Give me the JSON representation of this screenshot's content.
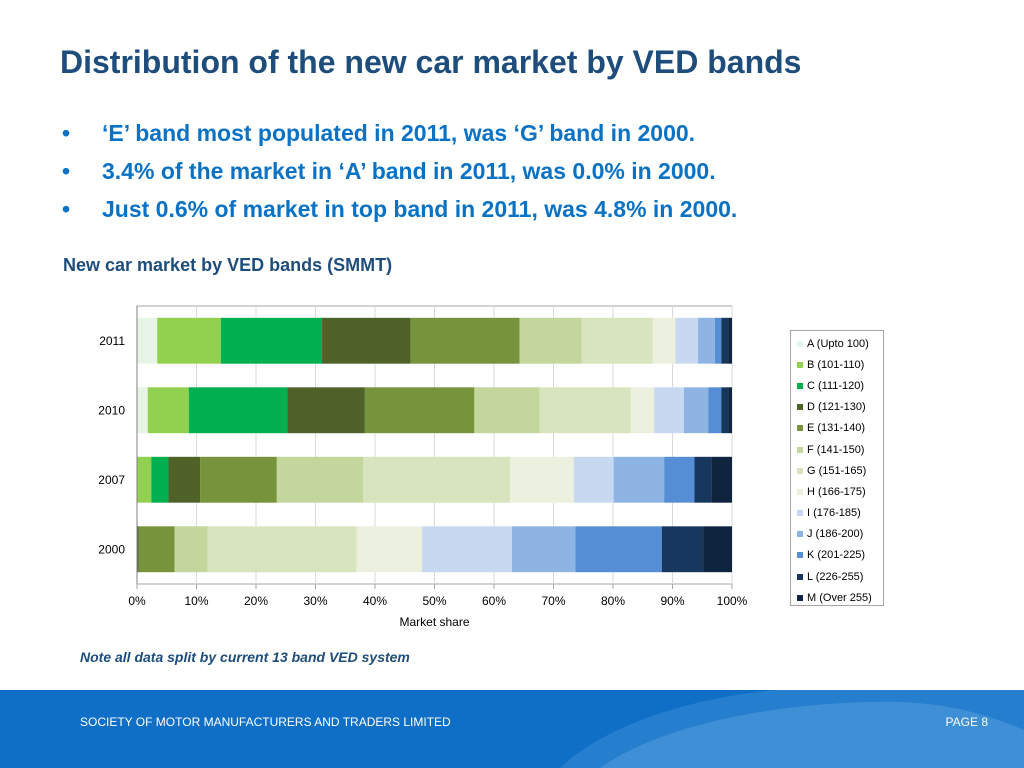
{
  "slide": {
    "title": "Distribution of the new car market by VED bands",
    "bullets": [
      "‘E’ band most populated in 2011, was ‘G’ band in 2000.",
      "3.4% of the market in ‘A’ band in 2011, was 0.0% in 2000.",
      "Just 0.6% of market in top band in 2011, was 4.8% in 2000."
    ],
    "bullet_icon": "bullet-dot-icon",
    "note": "Note all data split by current 13 band VED system"
  },
  "footer": {
    "left": "SOCIETY OF MOTOR MANUFACTURERS AND TRADERS LIMITED",
    "right": "PAGE 8"
  },
  "chart_data": {
    "type": "bar",
    "orientation": "horizontal",
    "stacked": "percent",
    "title": "New car market by VED bands (SMMT)",
    "xlabel": "Market share",
    "ylabel": "",
    "categories": [
      "2011",
      "2010",
      "2007",
      "2000"
    ],
    "xlim": [
      0,
      100
    ],
    "x_ticks": [
      "0%",
      "10%",
      "20%",
      "30%",
      "40%",
      "50%",
      "60%",
      "70%",
      "80%",
      "90%",
      "100%"
    ],
    "grid": true,
    "legend_position": "right",
    "series": [
      {
        "name": "A (Upto 100)",
        "color": "#e6f5e6",
        "values": [
          3.4,
          1.8,
          0.0,
          0.0
        ]
      },
      {
        "name": "B (101-110)",
        "color": "#92d050",
        "values": [
          10.7,
          6.9,
          2.4,
          0.0
        ]
      },
      {
        "name": "C (111-120)",
        "color": "#00b050",
        "values": [
          17.0,
          16.6,
          2.9,
          0.0
        ]
      },
      {
        "name": "D (121-130)",
        "color": "#4f6228",
        "values": [
          14.9,
          13.0,
          5.3,
          0.3
        ]
      },
      {
        "name": "E (131-140)",
        "color": "#77933c",
        "values": [
          18.3,
          18.4,
          12.9,
          6.0
        ]
      },
      {
        "name": "F (141-150)",
        "color": "#c3d69b",
        "values": [
          10.4,
          11.0,
          14.5,
          5.6
        ]
      },
      {
        "name": "G (151-165)",
        "color": "#d7e4bd",
        "values": [
          12.0,
          15.3,
          24.7,
          25.0
        ]
      },
      {
        "name": "H (166-175)",
        "color": "#ebf1de",
        "values": [
          3.8,
          3.9,
          10.7,
          11.0
        ]
      },
      {
        "name": "I (176-185)",
        "color": "#c6d9f1",
        "values": [
          3.8,
          5.0,
          6.7,
          15.1
        ]
      },
      {
        "name": "J (186-200)",
        "color": "#8eb4e3",
        "values": [
          2.8,
          4.1,
          8.5,
          10.7
        ]
      },
      {
        "name": "K (201-225)",
        "color": "#558ed5",
        "values": [
          1.1,
          2.2,
          5.1,
          14.5
        ]
      },
      {
        "name": "L (226-255)",
        "color": "#17375e",
        "values": [
          1.2,
          1.2,
          2.8,
          7.0
        ]
      },
      {
        "name": "M (Over 255)",
        "color": "#0f243e",
        "values": [
          0.6,
          0.6,
          3.5,
          4.8
        ]
      }
    ]
  }
}
